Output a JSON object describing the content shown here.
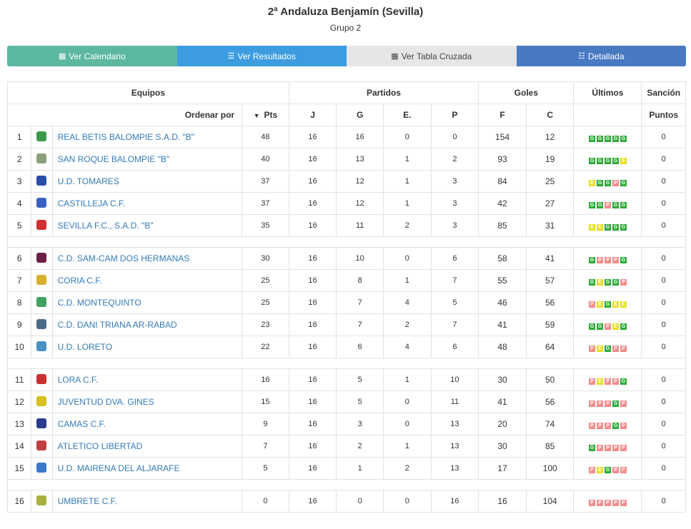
{
  "title": "2ª Andaluza Benjamín (Sevilla)",
  "subtitle": "Grupo 2",
  "buttons": [
    {
      "label": "Ver Calendario",
      "icon": "calendar-icon",
      "color": "#5cb8a0"
    },
    {
      "label": "Ver Resultados",
      "icon": "list-icon",
      "color": "#3d9ce0"
    },
    {
      "label": "Ver Tabla Cruzada",
      "icon": "grid-icon",
      "color": "#e6e6e6"
    },
    {
      "label": "Detallada",
      "icon": "detail-list-icon",
      "color": "#4a79c4"
    }
  ],
  "headers": {
    "equipos": "Equipos",
    "partidos": "Partidos",
    "goles": "Goles",
    "ultimos": "Últimos",
    "sancion": "Sanción",
    "ordenar": "Ordenar por",
    "pts": "Pts",
    "j": "J",
    "g": "G",
    "e": "E.",
    "p": "P",
    "f": "F",
    "c": "C",
    "puntos": "Puntos"
  },
  "form_colors": {
    "G": "#2eaa39",
    "E": "#e6e024",
    "P": "#f28c8c"
  },
  "rows": [
    {
      "pos": "1",
      "team": "REAL BETIS BALOMPIE S.A.D. \"B\"",
      "crest": "#3a9a4a",
      "pts": "48",
      "j": "16",
      "g": "16",
      "e": "0",
      "p": "0",
      "f": "154",
      "c": "12",
      "form": "GGGGG",
      "sancion": "0"
    },
    {
      "pos": "2",
      "team": "SAN ROQUE BALOMPIE \"B\"",
      "crest": "#8aa07a",
      "pts": "40",
      "j": "16",
      "g": "13",
      "e": "1",
      "p": "2",
      "f": "93",
      "c": "19",
      "form": "GGGGE",
      "sancion": "0"
    },
    {
      "pos": "3",
      "team": "U.D. TOMARES",
      "crest": "#2a4fa8",
      "pts": "37",
      "j": "16",
      "g": "12",
      "e": "1",
      "p": "3",
      "f": "84",
      "c": "25",
      "form": "EGGPG",
      "sancion": "0"
    },
    {
      "pos": "4",
      "team": "CASTILLEJA C.F.",
      "crest": "#3a5fc0",
      "pts": "37",
      "j": "16",
      "g": "12",
      "e": "1",
      "p": "3",
      "f": "42",
      "c": "27",
      "form": "GGPGG",
      "sancion": "0"
    },
    {
      "pos": "5",
      "team": "SEVILLA F.C., S.A.D. \"B\"",
      "crest": "#d03030",
      "pts": "35",
      "j": "16",
      "g": "11",
      "e": "2",
      "p": "3",
      "f": "85",
      "c": "31",
      "form": "EEGGG",
      "sancion": "0"
    },
    {
      "pos": "6",
      "team": "C.D. SAM-CAM DOS HERMANAS",
      "crest": "#6a2048",
      "pts": "30",
      "j": "16",
      "g": "10",
      "e": "0",
      "p": "6",
      "f": "58",
      "c": "41",
      "form": "GPPPG",
      "sancion": "0"
    },
    {
      "pos": "7",
      "team": "CORIA C.F.",
      "crest": "#d8b030",
      "pts": "25",
      "j": "16",
      "g": "8",
      "e": "1",
      "p": "7",
      "f": "55",
      "c": "57",
      "form": "GEGGP",
      "sancion": "0"
    },
    {
      "pos": "8",
      "team": "C.D. MONTEQUINTO",
      "crest": "#40a060",
      "pts": "25",
      "j": "16",
      "g": "7",
      "e": "4",
      "p": "5",
      "f": "46",
      "c": "56",
      "form": "PEGEE",
      "sancion": "0"
    },
    {
      "pos": "9",
      "team": "C.D. DANI TRIANA AR-RABAD",
      "crest": "#4a6a8a",
      "pts": "23",
      "j": "16",
      "g": "7",
      "e": "2",
      "p": "7",
      "f": "41",
      "c": "59",
      "form": "GGPEG",
      "sancion": "0"
    },
    {
      "pos": "10",
      "team": "U.D. LORETO",
      "crest": "#4a90c0",
      "pts": "22",
      "j": "16",
      "g": "6",
      "e": "4",
      "p": "6",
      "f": "48",
      "c": "64",
      "form": "PEGPP",
      "sancion": "0"
    },
    {
      "pos": "11",
      "team": "LORA C.F.",
      "crest": "#c83030",
      "pts": "16",
      "j": "16",
      "g": "5",
      "e": "1",
      "p": "10",
      "f": "30",
      "c": "50",
      "form": "PEPPG",
      "sancion": "0"
    },
    {
      "pos": "12",
      "team": "JUVENTUD DVA. GINES",
      "crest": "#d8c020",
      "pts": "15",
      "j": "16",
      "g": "5",
      "e": "0",
      "p": "11",
      "f": "41",
      "c": "56",
      "form": "PPPGP",
      "sancion": "0"
    },
    {
      "pos": "13",
      "team": "CAMAS C.F.",
      "crest": "#2a3a90",
      "pts": "9",
      "j": "16",
      "g": "3",
      "e": "0",
      "p": "13",
      "f": "20",
      "c": "74",
      "form": "PPPGP",
      "sancion": "0"
    },
    {
      "pos": "14",
      "team": "ATLETICO LIBERTAD",
      "crest": "#c04040",
      "pts": "7",
      "j": "16",
      "g": "2",
      "e": "1",
      "p": "13",
      "f": "30",
      "c": "85",
      "form": "GPPPP",
      "sancion": "0"
    },
    {
      "pos": "15",
      "team": "U.D. MAIRENA DEL ALJARAFE",
      "crest": "#3a78c8",
      "pts": "5",
      "j": "16",
      "g": "1",
      "e": "2",
      "p": "13",
      "f": "17",
      "c": "100",
      "form": "PEGPP",
      "sancion": "0"
    },
    {
      "pos": "16",
      "team": "UMBRETE C.F.",
      "crest": "#a8b040",
      "pts": "0",
      "j": "16",
      "g": "0",
      "e": "0",
      "p": "16",
      "f": "16",
      "c": "104",
      "form": "PPPPP",
      "sancion": "0"
    }
  ],
  "separators_after": [
    5,
    10,
    15
  ]
}
